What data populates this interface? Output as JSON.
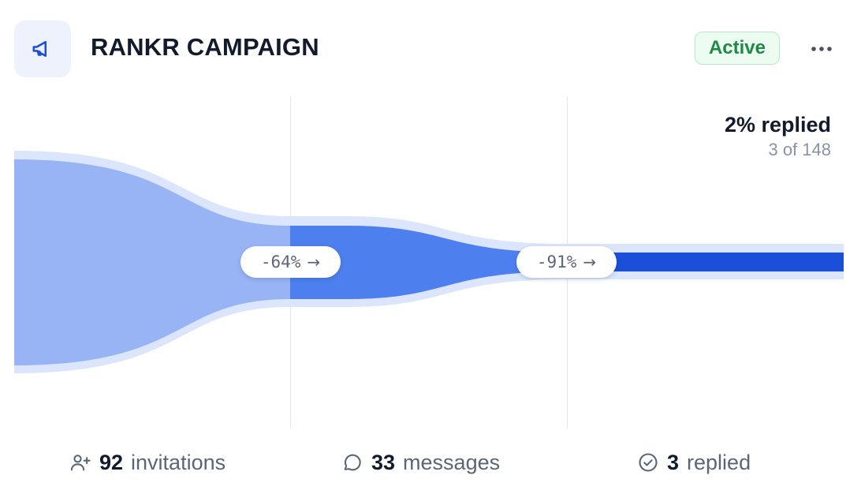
{
  "header": {
    "icon": "megaphone-icon",
    "title": "RANKR CAMPAIGN",
    "status": "Active",
    "more_icon": "more-horizontal-icon"
  },
  "summary": {
    "headline": "2% replied",
    "detail": "3 of 148"
  },
  "funnel": {
    "transitions": [
      {
        "label": "-64%"
      },
      {
        "label": "-91%"
      }
    ]
  },
  "stats": [
    {
      "icon": "user-plus-icon",
      "value": "92",
      "label": "invitations"
    },
    {
      "icon": "chat-bubble-icon",
      "value": "33",
      "label": "messages"
    },
    {
      "icon": "check-circle-icon",
      "value": "3",
      "label": "replied"
    }
  ],
  "colors": {
    "accent": "#1b4fd8",
    "stage1": "#98b4f4",
    "stage2": "#4d80ee",
    "stage3": "#1b4fd8",
    "halo": "#dbe5fc",
    "status_green": "#1f8a45"
  }
}
